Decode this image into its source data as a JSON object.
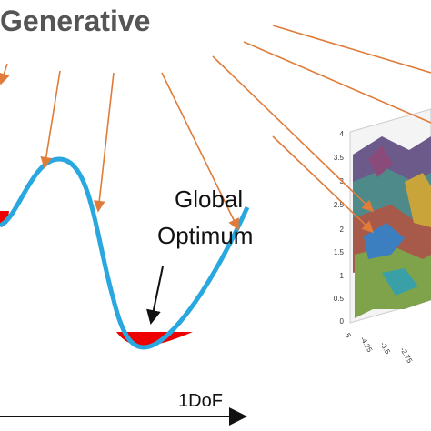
{
  "title": "Generative",
  "annotation": {
    "line1": "Global",
    "line2": "Optimum"
  },
  "axis_label": "1DoF",
  "plot3d": {
    "zticks": [
      "4",
      "3.5",
      "3",
      "2.5",
      "2",
      "1.5",
      "1",
      "0.5",
      "0"
    ],
    "xticks": [
      "-5",
      "-4.25",
      "-3.5",
      "-2.75"
    ]
  }
}
